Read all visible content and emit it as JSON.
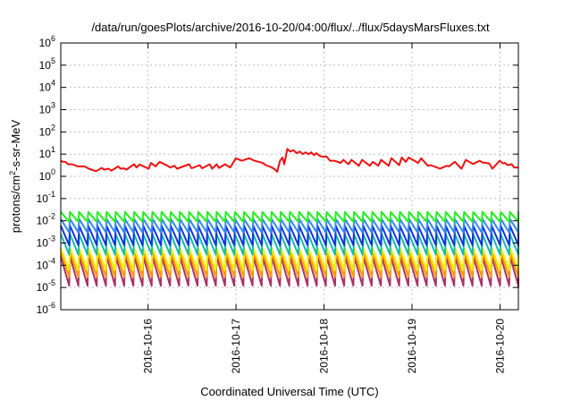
{
  "title": "/data/run/goesPlots/archive/2016-10-20/04:00/flux/../flux/5daysMarsFluxes.txt",
  "xlabel": "Coordinated Universal Time (UTC)",
  "ylabel_parts": [
    "protons/cm",
    "2",
    "-s-sr-MeV"
  ],
  "chart_data": {
    "type": "line",
    "title": "/data/run/goesPlots/archive/2016-10-20/04:00/flux/../flux/5daysMarsFluxes.txt",
    "xlabel": "Coordinated Universal Time (UTC)",
    "ylabel": "protons/cm2-s-sr-MeV",
    "yscale": "log",
    "ylim": [
      1e-06,
      1000000.0
    ],
    "xlim": [
      "2016-10-15T00:12",
      "2016-10-20T05:00"
    ],
    "grid": true,
    "legend": "none",
    "y_ticks": [
      {
        "value": 1e-06,
        "base": "10",
        "exp": "-6"
      },
      {
        "value": 1e-05,
        "base": "10",
        "exp": "-5"
      },
      {
        "value": 0.0001,
        "base": "10",
        "exp": "-4"
      },
      {
        "value": 0.001,
        "base": "10",
        "exp": "-3"
      },
      {
        "value": 0.01,
        "base": "10",
        "exp": "-2"
      },
      {
        "value": 0.1,
        "base": "10",
        "exp": "-1"
      },
      {
        "value": 1,
        "base": "10",
        "exp": "0"
      },
      {
        "value": 10,
        "base": "10",
        "exp": "1"
      },
      {
        "value": 100,
        "base": "10",
        "exp": "2"
      },
      {
        "value": 1000,
        "base": "10",
        "exp": "3"
      },
      {
        "value": 10000,
        "base": "10",
        "exp": "4"
      },
      {
        "value": 100000,
        "base": "10",
        "exp": "5"
      },
      {
        "value": 1000000,
        "base": "10",
        "exp": "6"
      }
    ],
    "x_ticks": [
      "2016-10-16",
      "2016-10-17",
      "2016-10-18",
      "2016-10-19",
      "2016-10-20"
    ],
    "series": [
      {
        "color": "#ee1111",
        "x": [
          "2016-10-15T00:12",
          "2016-10-15T00:48",
          "2016-10-15T01:30",
          "2016-10-15T02:12",
          "2016-10-15T03:20",
          "2016-10-15T04:52",
          "2016-10-15T06:40",
          "2016-10-15T07:52",
          "2016-10-15T09:50",
          "2016-10-15T11:20",
          "2016-10-15T12:00",
          "2016-10-15T13:17",
          "2016-10-15T14:00",
          "2016-10-15T15:53",
          "2016-10-15T16:30",
          "2016-10-15T17:25",
          "2016-10-15T18:05",
          "2016-10-15T20:12",
          "2016-10-15T20:50",
          "2016-10-15T21:43",
          "2016-10-16T00:10",
          "2016-10-16T00:48",
          "2016-10-16T02:05",
          "2016-10-16T03:10",
          "2016-10-16T05:20",
          "2016-10-16T06:00",
          "2016-10-16T07:15",
          "2016-10-16T07:55",
          "2016-10-16T11:12",
          "2016-10-16T11:55",
          "2016-10-16T14:05",
          "2016-10-16T14:45",
          "2016-10-16T16:50",
          "2016-10-16T17:30",
          "2016-10-16T18:43",
          "2016-10-16T19:20",
          "2016-10-16T21:00",
          "2016-10-16T22:25",
          "2016-10-16T23:57",
          "2016-10-17T01:34",
          "2016-10-17T03:36",
          "2016-10-17T05:02",
          "2016-10-17T06:10",
          "2016-10-17T07:15",
          "2016-10-17T08:07",
          "2016-10-17T09:46",
          "2016-10-17T10:30",
          "2016-10-17T11:14",
          "2016-10-17T12:00",
          "2016-10-17T12:40",
          "2016-10-17T13:10",
          "2016-10-17T14:00",
          "2016-10-17T14:48",
          "2016-10-17T15:40",
          "2016-10-17T16:30",
          "2016-10-17T17:24",
          "2016-10-17T18:10",
          "2016-10-17T18:58",
          "2016-10-17T19:50",
          "2016-10-17T20:30",
          "2016-10-17T21:15",
          "2016-10-17T21:50",
          "2016-10-17T23:00",
          "2016-10-18T00:00",
          "2016-10-18T00:38",
          "2016-10-18T01:40",
          "2016-10-18T02:52",
          "2016-10-18T04:30",
          "2016-10-18T05:18",
          "2016-10-18T06:40",
          "2016-10-18T07:30",
          "2016-10-18T09:30",
          "2016-10-18T10:24",
          "2016-10-18T12:30",
          "2016-10-18T13:18",
          "2016-10-18T14:48",
          "2016-10-18T15:34",
          "2016-10-18T17:38",
          "2016-10-18T18:22",
          "2016-10-18T20:30",
          "2016-10-18T21:12",
          "2016-10-18T22:18",
          "2016-10-18T23:06",
          "2016-10-19T01:40",
          "2016-10-19T02:30",
          "2016-10-19T04:18",
          "2016-10-19T05:06",
          "2016-10-19T06:48",
          "2016-10-19T07:36",
          "2016-10-19T09:30",
          "2016-10-19T10:06",
          "2016-10-19T11:40",
          "2016-10-19T13:30",
          "2016-10-19T14:40",
          "2016-10-19T16:40",
          "2016-10-19T18:25",
          "2016-10-19T19:15",
          "2016-10-19T21:05",
          "2016-10-19T21:55",
          "2016-10-19T23:55",
          "2016-10-20T00:50",
          "2016-10-20T01:20",
          "2016-10-20T02:04",
          "2016-10-20T03:12",
          "2016-10-20T03:50",
          "2016-10-20T05:00"
        ],
        "y": [
          5,
          4.5,
          4.5,
          3.5,
          3.5,
          2.8,
          2.8,
          2.2,
          1.7,
          2.4,
          2,
          2.2,
          1.8,
          2.8,
          2.2,
          2.3,
          2,
          3.5,
          2.5,
          3.4,
          2.2,
          4,
          2.8,
          4.5,
          3,
          2.5,
          3,
          2.2,
          3.5,
          2.3,
          3.2,
          2.3,
          3.5,
          2.2,
          3.5,
          2.4,
          3.5,
          2.5,
          6.5,
          5,
          6.5,
          5,
          4.5,
          4,
          3.2,
          2.5,
          2.1,
          1.6,
          5,
          7,
          3.5,
          17,
          13,
          15,
          11,
          13,
          10,
          12,
          10,
          12,
          9,
          11,
          8,
          7.5,
          8,
          5,
          5,
          4,
          5.5,
          3.5,
          5.5,
          3,
          5.5,
          3,
          4.5,
          3,
          5.5,
          3,
          6.5,
          3.2,
          7,
          4.5,
          7,
          4,
          6.5,
          3,
          3.2,
          2.5,
          2.2,
          3,
          2.8,
          4.5,
          2.2,
          5.5,
          3.6,
          5,
          4.2,
          3.8,
          2.2,
          5,
          3.8,
          4,
          3.2,
          3.5,
          2.5,
          2.5
        ]
      },
      {
        "color": "#22ee22",
        "x": [
          "2016-10-15T00:12",
          "2016-10-20T05:00"
        ],
        "pattern": {
          "period_hours": 2.5,
          "high": 0.025,
          "low": 0.009
        },
        "y": [
          0.025,
          0.018
        ]
      },
      {
        "color": "#3388ee",
        "x": [
          "2016-10-15T00:12",
          "2016-10-20T05:00"
        ],
        "pattern": {
          "period_hours": 2.5,
          "high": 0.012,
          "low": 0.003
        },
        "y": [
          0.012,
          0.008
        ]
      },
      {
        "color": "#1133dd",
        "x": [
          "2016-10-15T00:12",
          "2016-10-20T05:00"
        ],
        "pattern": {
          "period_hours": 2.5,
          "high": 0.006,
          "low": 0.0008
        },
        "y": [
          0.006,
          0.002
        ]
      },
      {
        "color": "#11bbaa",
        "x": [
          "2016-10-15T00:12",
          "2016-10-20T05:00"
        ],
        "pattern": {
          "period_hours": 2.5,
          "high": 0.0025,
          "low": 0.0003
        },
        "y": [
          0.0025,
          0.0012
        ]
      },
      {
        "color": "#eeee00",
        "x": [
          "2016-10-15T00:12",
          "2016-10-20T05:00"
        ],
        "pattern": {
          "period_hours": 2.5,
          "high": 0.0006,
          "low": 6e-05
        },
        "y": [
          0.0006,
          0.0003
        ]
      },
      {
        "color": "#ff9900",
        "x": [
          "2016-10-15T00:12",
          "2016-10-20T05:00"
        ],
        "pattern": {
          "period_hours": 2.5,
          "high": 0.0004,
          "low": 3e-05
        },
        "y": [
          0.0004,
          0.0002
        ]
      },
      {
        "color": "#aa3366",
        "x": [
          "2016-10-15T00:12",
          "2016-10-20T05:00"
        ],
        "pattern": {
          "period_hours": 2.5,
          "high": 0.00025,
          "low": 1.2e-05
        },
        "y": [
          0.00025,
          1e-05
        ]
      }
    ]
  }
}
